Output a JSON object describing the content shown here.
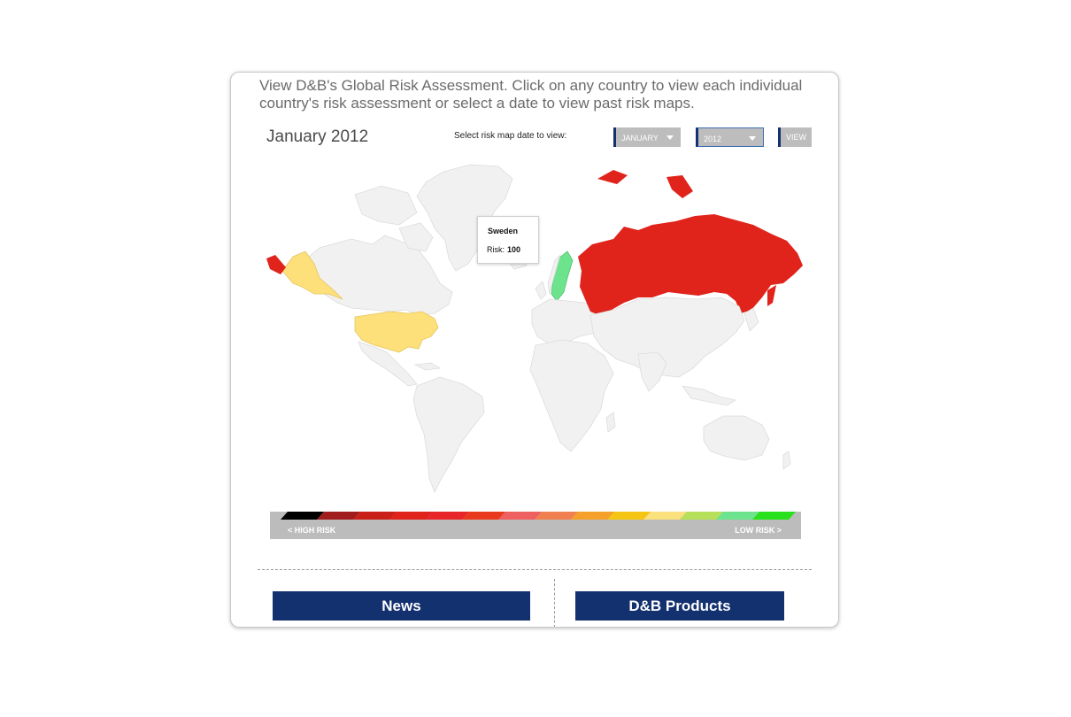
{
  "intro_text": "View D&B's Global Risk Assessment. Click on any country to view each individual country's risk assessment or select a date to view past risk maps.",
  "map_title": "January 2012",
  "date_selector": {
    "label": "Select risk map date to view:",
    "month_value": "JANUARY",
    "year_value": "2012",
    "view_button": "VIEW"
  },
  "tooltip": {
    "country": "Sweden",
    "risk_label": "Risk:",
    "risk_value": "100"
  },
  "map_colors": {
    "default": "#f1f1f1",
    "border": "#dcdcdc",
    "russia": "#e0231b",
    "alaska_far_east": "#e0231b",
    "usa": "#fde07a",
    "sweden": "#6ee38d"
  },
  "legend": {
    "high_label": "<  HIGH RISK",
    "low_label": "LOW RISK  >",
    "colors": [
      "#000000",
      "#a11d1d",
      "#c9201a",
      "#e0231b",
      "#e8262a",
      "#ea3a1d",
      "#ef6060",
      "#f08050",
      "#f5a02a",
      "#f5c414",
      "#fbe07e",
      "#b7e05a",
      "#6ee38d",
      "#28e01c"
    ]
  },
  "buttons": {
    "news": "News",
    "products": "D&B Products"
  }
}
